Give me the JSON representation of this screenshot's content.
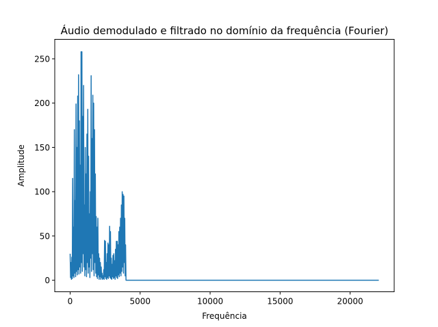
{
  "chart_data": {
    "type": "line",
    "title": "Áudio demodulado e filtrado no domínio da frequência (Fourier)",
    "xlabel": "Frequência",
    "ylabel": "Amplitude",
    "xlim": [
      -1100,
      23150
    ],
    "ylim": [
      -13,
      272
    ],
    "xticks": [
      0,
      5000,
      10000,
      15000,
      20000
    ],
    "yticks": [
      0,
      50,
      100,
      150,
      200,
      250
    ],
    "grid": false,
    "line_color": "#1f77b4",
    "series": [
      {
        "name": "",
        "points": [
          [
            0,
            30
          ],
          [
            30,
            3
          ],
          [
            60,
            20
          ],
          [
            90,
            1
          ],
          [
            120,
            26
          ],
          [
            150,
            2
          ],
          [
            180,
            115
          ],
          [
            210,
            5
          ],
          [
            240,
            60
          ],
          [
            270,
            3
          ],
          [
            300,
            170
          ],
          [
            330,
            8
          ],
          [
            360,
            90
          ],
          [
            390,
            4
          ],
          [
            420,
            199
          ],
          [
            450,
            10
          ],
          [
            480,
            150
          ],
          [
            510,
            6
          ],
          [
            540,
            208
          ],
          [
            570,
            12
          ],
          [
            600,
            232
          ],
          [
            630,
            7
          ],
          [
            660,
            180
          ],
          [
            690,
            15
          ],
          [
            720,
            130
          ],
          [
            750,
            8
          ],
          [
            780,
            258
          ],
          [
            810,
            20
          ],
          [
            840,
            258
          ],
          [
            870,
            10
          ],
          [
            900,
            185
          ],
          [
            930,
            30
          ],
          [
            960,
            220
          ],
          [
            990,
            15
          ],
          [
            1020,
            85
          ],
          [
            1050,
            5
          ],
          [
            1080,
            150
          ],
          [
            1110,
            12
          ],
          [
            1140,
            120
          ],
          [
            1170,
            4
          ],
          [
            1200,
            165
          ],
          [
            1230,
            20
          ],
          [
            1260,
            193
          ],
          [
            1290,
            8
          ],
          [
            1320,
            140
          ],
          [
            1350,
            15
          ],
          [
            1380,
            75
          ],
          [
            1410,
            3
          ],
          [
            1440,
            100
          ],
          [
            1470,
            25
          ],
          [
            1500,
            231
          ],
          [
            1530,
            10
          ],
          [
            1560,
            160
          ],
          [
            1590,
            30
          ],
          [
            1620,
            209
          ],
          [
            1650,
            12
          ],
          [
            1680,
            200
          ],
          [
            1710,
            5
          ],
          [
            1740,
            170
          ],
          [
            1770,
            20
          ],
          [
            1800,
            120
          ],
          [
            1830,
            8
          ],
          [
            1860,
            72
          ],
          [
            1890,
            4
          ],
          [
            1920,
            60
          ],
          [
            1950,
            2
          ],
          [
            1980,
            70
          ],
          [
            2010,
            6
          ],
          [
            2040,
            30
          ],
          [
            2070,
            1
          ],
          [
            2100,
            25
          ],
          [
            2130,
            4
          ],
          [
            2160,
            20
          ],
          [
            2190,
            1
          ],
          [
            2220,
            15
          ],
          [
            2250,
            3
          ],
          [
            2280,
            8
          ],
          [
            2310,
            1
          ],
          [
            2340,
            5
          ],
          [
            2370,
            2
          ],
          [
            2400,
            12
          ],
          [
            2430,
            1
          ],
          [
            2460,
            45
          ],
          [
            2490,
            4
          ],
          [
            2520,
            44
          ],
          [
            2550,
            2
          ],
          [
            2580,
            20
          ],
          [
            2610,
            1
          ],
          [
            2640,
            30
          ],
          [
            2670,
            3
          ],
          [
            2700,
            42
          ],
          [
            2730,
            2
          ],
          [
            2760,
            40
          ],
          [
            2790,
            5
          ],
          [
            2820,
            61
          ],
          [
            2850,
            3
          ],
          [
            2880,
            55
          ],
          [
            2910,
            2
          ],
          [
            2940,
            25
          ],
          [
            2970,
            1
          ],
          [
            3000,
            18
          ],
          [
            3030,
            4
          ],
          [
            3060,
            28
          ],
          [
            3090,
            2
          ],
          [
            3120,
            30
          ],
          [
            3150,
            3
          ],
          [
            3180,
            22
          ],
          [
            3210,
            1
          ],
          [
            3240,
            35
          ],
          [
            3270,
            5
          ],
          [
            3300,
            44
          ],
          [
            3330,
            3
          ],
          [
            3360,
            44
          ],
          [
            3390,
            2
          ],
          [
            3420,
            40
          ],
          [
            3450,
            6
          ],
          [
            3480,
            55
          ],
          [
            3510,
            4
          ],
          [
            3540,
            60
          ],
          [
            3570,
            8
          ],
          [
            3600,
            70
          ],
          [
            3630,
            5
          ],
          [
            3660,
            85
          ],
          [
            3690,
            10
          ],
          [
            3720,
            100
          ],
          [
            3750,
            15
          ],
          [
            3780,
            97
          ],
          [
            3810,
            8
          ],
          [
            3840,
            95
          ],
          [
            3870,
            20
          ],
          [
            3900,
            70
          ],
          [
            3930,
            5
          ],
          [
            3960,
            40
          ],
          [
            3990,
            0
          ],
          [
            4020,
            0
          ],
          [
            22050,
            0
          ]
        ]
      }
    ]
  }
}
